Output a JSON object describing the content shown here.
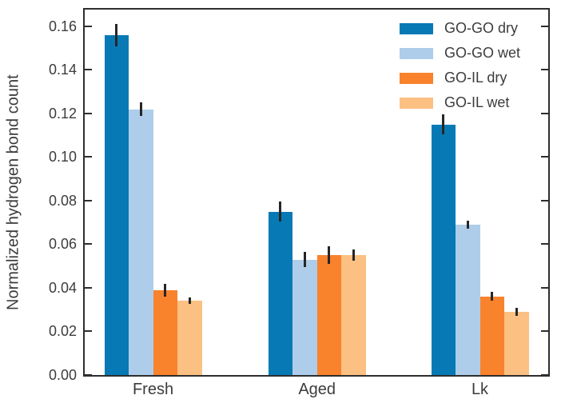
{
  "figure": {
    "background_color": "#ffffff",
    "axis_color": "#2e2e2e",
    "text_color": "#3c3c3c",
    "error_bar_color": "#262626"
  },
  "chart_data": {
    "type": "bar",
    "title": "",
    "xlabel": "",
    "ylabel": "Normalized hydrogen bond count",
    "categories": [
      "Fresh",
      "Aged",
      "Lk"
    ],
    "series": [
      {
        "name": "GO-GO dry",
        "color": "#0779b5",
        "values": [
          0.156,
          0.075,
          0.115
        ],
        "errors": [
          0.005,
          0.0045,
          0.0045
        ]
      },
      {
        "name": "GO-GO wet",
        "color": "#aecdeb",
        "values": [
          0.122,
          0.053,
          0.069
        ],
        "errors": [
          0.003,
          0.0035,
          0.002
        ]
      },
      {
        "name": "GO-IL dry",
        "color": "#f9822c",
        "values": [
          0.039,
          0.055,
          0.036
        ],
        "errors": [
          0.003,
          0.004,
          0.002
        ]
      },
      {
        "name": "GO-IL wet",
        "color": "#fcc083",
        "values": [
          0.034,
          0.055,
          0.029
        ],
        "errors": [
          0.0015,
          0.0025,
          0.002
        ]
      }
    ],
    "ylim": [
      0,
      0.1677
    ],
    "yticks": [
      0.0,
      0.02,
      0.04,
      0.06,
      0.08,
      0.1,
      0.12,
      0.14,
      0.16
    ],
    "ytick_labels": [
      "0.00",
      "0.02",
      "0.04",
      "0.06",
      "0.08",
      "0.10",
      "0.12",
      "0.14",
      "0.16"
    ],
    "grid": false,
    "legend_position": "upper right",
    "error_bars": true
  }
}
